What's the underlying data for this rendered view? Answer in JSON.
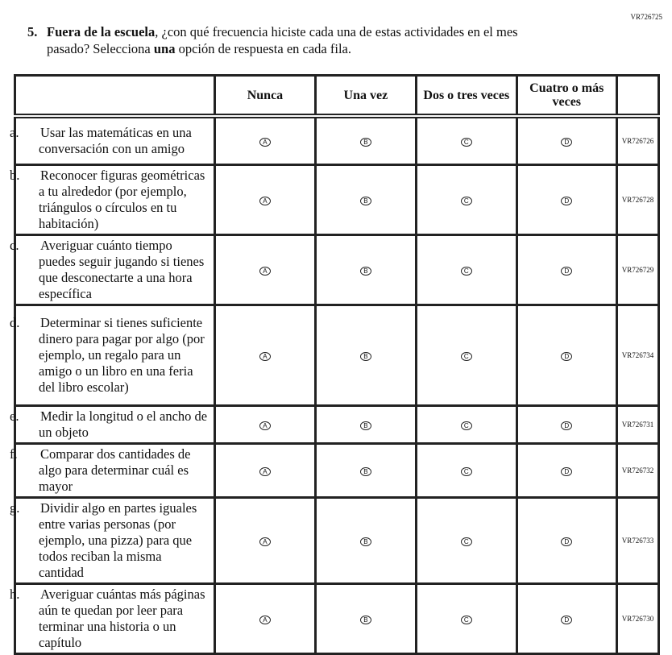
{
  "page_code": "VR726725",
  "question": {
    "number": "5.",
    "lead_bold": "Fuera de la escuela",
    "text1": ", ¿con qué frecuencia hiciste cada una de estas actividades en el mes",
    "text2a": "pasado? Selecciona ",
    "text2b": "una",
    "text2c": " opción de respuesta en cada fila."
  },
  "columns": [
    "Nunca",
    "Una vez",
    "Dos o tres veces",
    "Cuatro o más veces"
  ],
  "bubbles": [
    "A",
    "B",
    "C",
    "D"
  ],
  "rows": [
    {
      "letter": "a.",
      "text": "Usar las matemáticas en una conversación con un amigo",
      "code": "VR726726",
      "h": 60
    },
    {
      "letter": "b.",
      "text": "Reconocer figuras geométricas a tu alrededor (por ejemplo, triángulos o círculos en tu habitación)",
      "code": "VR726728",
      "h": 84
    },
    {
      "letter": "c.",
      "text": "Averiguar cuánto tiempo puedes seguir jugando si tienes que desconectarte a una hora específica",
      "code": "VR726729",
      "h": 84
    },
    {
      "letter": "d.",
      "text": "Determinar si tienes suficiente dinero para pagar por algo (por ejemplo, un regalo para un amigo o un libro en una feria del libro escolar)",
      "code": "VR726734",
      "h": 125
    },
    {
      "letter": "e.",
      "text": "Medir la longitud o el ancho de un objeto",
      "code": "VR726731",
      "h": 45
    },
    {
      "letter": "f.",
      "text": "Comparar dos cantidades de algo para determinar cuál es mayor",
      "code": "VR726732",
      "h": 64
    },
    {
      "letter": "g.",
      "text": "Dividir algo en partes iguales entre varias personas (por ejemplo, una pizza) para que todos reciban la misma cantidad",
      "code": "VR726733",
      "h": 104
    },
    {
      "letter": "h.",
      "text": "Averiguar cuántas más páginas aún te quedan por leer para terminar una historia o un capítulo",
      "code": "VR726730",
      "h": 82
    }
  ]
}
